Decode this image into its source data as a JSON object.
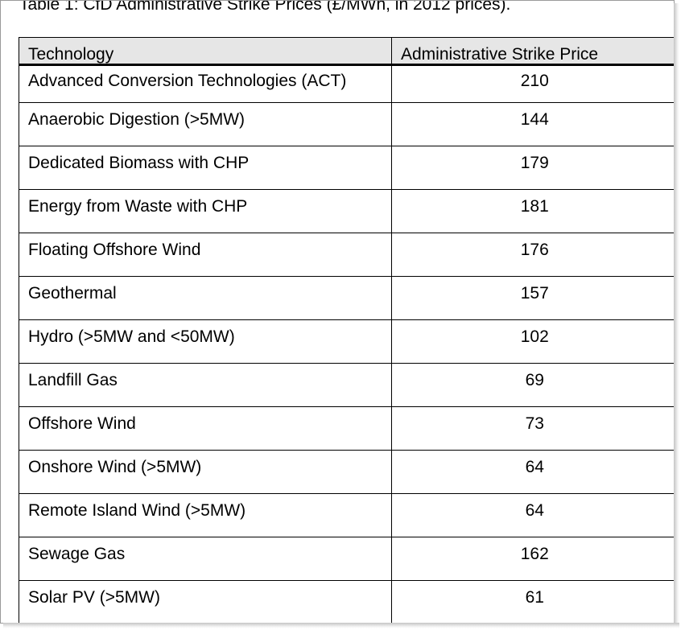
{
  "caption": "Table 1: CfD Administrative Strike Prices (£/MWh, in 2012 prices).",
  "table": {
    "headers": [
      "Technology",
      "Administrative Strike Price"
    ],
    "rows": [
      [
        "Advanced Conversion Technologies (ACT)",
        "210"
      ],
      [
        "Anaerobic Digestion (>5MW)",
        "144"
      ],
      [
        "Dedicated Biomass with CHP",
        "179"
      ],
      [
        "Energy from Waste with CHP",
        "181"
      ],
      [
        "Floating Offshore Wind",
        "176"
      ],
      [
        "Geothermal",
        "157"
      ],
      [
        "Hydro (>5MW and <50MW)",
        "102"
      ],
      [
        "Landfill Gas",
        "69"
      ],
      [
        "Offshore Wind",
        "73"
      ],
      [
        "Onshore Wind (>5MW)",
        "64"
      ],
      [
        "Remote Island Wind (>5MW)",
        "64"
      ],
      [
        "Sewage Gas",
        "162"
      ],
      [
        "Solar PV (>5MW)",
        "61"
      ]
    ]
  },
  "colors": {
    "header_background": "#e6e6e6",
    "rule": "#000000",
    "frame_border": "#9a9a9a"
  }
}
